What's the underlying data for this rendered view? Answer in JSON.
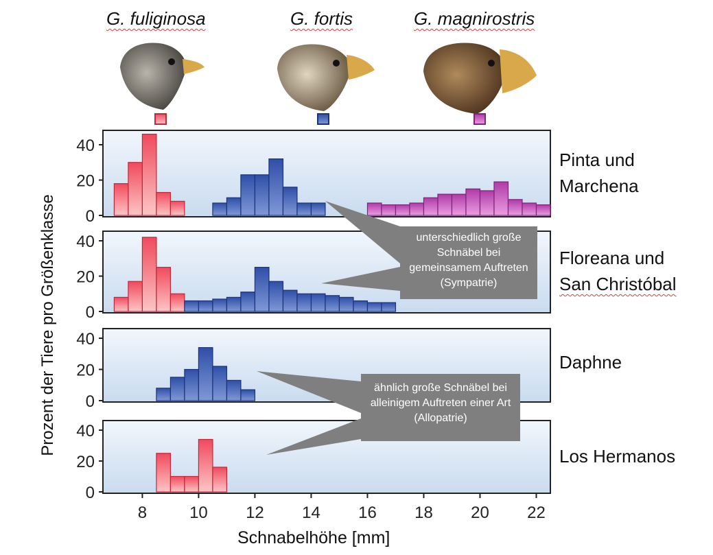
{
  "species": [
    {
      "name": "G. fuliginosa",
      "color": "#f04a5c",
      "icon": "small-ground-finch-head"
    },
    {
      "name": "G. fortis",
      "color": "#2f4fa8",
      "icon": "medium-ground-finch-head"
    },
    {
      "name": "G. magnirostris",
      "color": "#b03aa8",
      "icon": "large-ground-finch-head"
    }
  ],
  "islands": [
    {
      "line1": "Pinta und",
      "line2": "Marchena"
    },
    {
      "line1": "Floreana und",
      "line2": "San Christóbal"
    },
    {
      "line1": "Daphne",
      "line2": ""
    },
    {
      "line1": "Los Hermanos",
      "line2": ""
    }
  ],
  "callouts": [
    {
      "text": "unterschiedlich große Schnäbel bei gemeinsamem Auftreten (Sympatrie)"
    },
    {
      "text": "ähnlich große Schnäbel bei alleinigem Auftreten einer Art (Allopatrie)"
    }
  ],
  "chart_data": {
    "type": "bar",
    "xlabel": "Schnabelhöhe [mm]",
    "ylabel": "Prozent der Tiere pro Größenklasse",
    "xlim": [
      6.6,
      22.5
    ],
    "ylim": [
      0,
      48
    ],
    "xticks": [
      8,
      10,
      12,
      14,
      16,
      18,
      20,
      22
    ],
    "yticks": [
      0,
      20,
      40
    ],
    "bin_width": 0.5,
    "panels": [
      {
        "island": "Pinta und Marchena",
        "series": [
          {
            "species": "G. fuliginosa",
            "x": [
              7,
              7.5,
              8,
              8.5,
              9
            ],
            "values": [
              18,
              30,
              46,
              13,
              8
            ]
          },
          {
            "species": "G. fortis",
            "x": [
              10.5,
              11,
              11.5,
              12,
              12.5,
              13,
              13.5,
              14
            ],
            "values": [
              7,
              10,
              23,
              23,
              32,
              16,
              7,
              7
            ]
          },
          {
            "species": "G. magnirostris",
            "x": [
              16,
              16.5,
              17,
              17.5,
              18,
              18.5,
              19,
              19.5,
              20,
              20.5,
              21,
              21.5,
              22
            ],
            "values": [
              7,
              6,
              6,
              7,
              10,
              12,
              12,
              15,
              14,
              19,
              9,
              7,
              6
            ]
          }
        ]
      },
      {
        "island": "Floreana und San Christóbal",
        "series": [
          {
            "species": "G. fuliginosa",
            "x": [
              7,
              7.5,
              8,
              8.5,
              9
            ],
            "values": [
              8,
              17,
              42,
              25,
              10
            ]
          },
          {
            "species": "G. fortis",
            "x": [
              9.5,
              10,
              10.5,
              11,
              11.5,
              12,
              12.5,
              13,
              13.5,
              14,
              14.5,
              15,
              15.5,
              16,
              16.5
            ],
            "values": [
              6,
              6,
              7,
              8,
              11,
              25,
              17,
              12,
              10,
              10,
              9,
              8,
              6,
              5,
              5
            ]
          }
        ]
      },
      {
        "island": "Daphne",
        "series": [
          {
            "species": "G. fortis",
            "x": [
              8.5,
              9,
              9.5,
              10,
              10.5,
              11,
              11.5
            ],
            "values": [
              8,
              15,
              20,
              34,
              22,
              13,
              7
            ]
          }
        ]
      },
      {
        "island": "Los Hermanos",
        "series": [
          {
            "species": "G. fuliginosa",
            "x": [
              8.5,
              9,
              9.5,
              10,
              10.5
            ],
            "values": [
              25,
              10,
              10,
              34,
              16
            ]
          }
        ]
      }
    ]
  }
}
